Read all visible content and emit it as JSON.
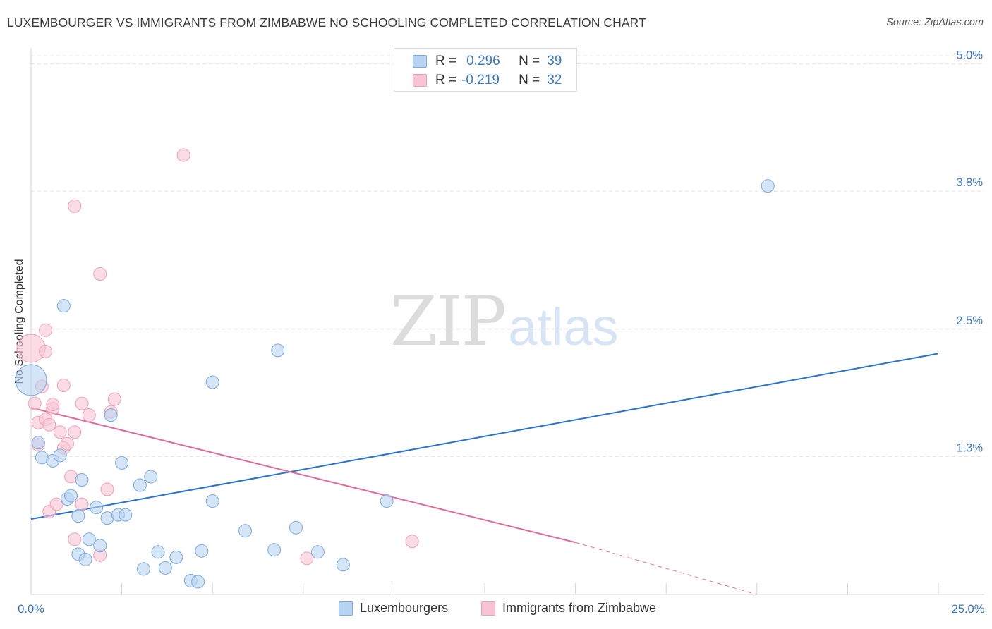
{
  "title": "LUXEMBOURGER VS IMMIGRANTS FROM ZIMBABWE NO SCHOOLING COMPLETED CORRELATION CHART",
  "source": "Source: ZipAtlas.com",
  "watermark": {
    "zip": "ZIP",
    "atlas": "atlas"
  },
  "legend_top": {
    "r_label": "R =",
    "n_label": "N =",
    "series": [
      {
        "r": "0.296",
        "n": "39"
      },
      {
        "r": "-0.219",
        "n": "32"
      }
    ]
  },
  "colors": {
    "blue_fill": "#b7d3f2",
    "blue_stroke": "#7aa9dc",
    "blue_line": "#2a72cf",
    "pink_fill": "#f8c4d3",
    "pink_stroke": "#ef9fb8",
    "pink_line": "#e06a98",
    "value_text": "#3b78c4",
    "grid": "#e3e3e3"
  },
  "chart_data": {
    "type": "scatter",
    "title": "LUXEMBOURGER VS IMMIGRANTS FROM ZIMBABWE NO SCHOOLING COMPLETED CORRELATION CHART",
    "xlabel": "",
    "ylabel": "No Schooling Completed",
    "xlim": [
      0,
      25
    ],
    "ylim": [
      0,
      5.15
    ],
    "x_tick_labels": [
      "0.0%",
      "25.0%"
    ],
    "y_ticks": [
      1.3,
      2.5,
      3.8,
      5.0
    ],
    "y_tick_labels": [
      "1.3%",
      "2.5%",
      "3.8%",
      "5.0%"
    ],
    "series": [
      {
        "name": "Luxembourgers",
        "color": "#b7d3f2",
        "trend": {
          "x": [
            0,
            25
          ],
          "y": [
            0.71,
            2.27
          ]
        },
        "points": [
          [
            0.0,
            2.02,
            22
          ],
          [
            0.2,
            1.43,
            9
          ],
          [
            0.3,
            1.29,
            9
          ],
          [
            0.6,
            1.26,
            9
          ],
          [
            0.8,
            1.31,
            9
          ],
          [
            0.9,
            2.72,
            9
          ],
          [
            1.0,
            0.9,
            9
          ],
          [
            1.1,
            0.93,
            9
          ],
          [
            1.3,
            0.38,
            9
          ],
          [
            1.3,
            0.74,
            9
          ],
          [
            1.4,
            1.08,
            9
          ],
          [
            1.5,
            0.33,
            9
          ],
          [
            1.6,
            0.52,
            9
          ],
          [
            1.8,
            0.82,
            9
          ],
          [
            1.9,
            0.46,
            9
          ],
          [
            2.1,
            0.72,
            9
          ],
          [
            2.2,
            1.69,
            9
          ],
          [
            2.4,
            0.75,
            9
          ],
          [
            2.5,
            1.24,
            9
          ],
          [
            2.6,
            0.75,
            9
          ],
          [
            3.0,
            1.03,
            9
          ],
          [
            3.1,
            0.24,
            9
          ],
          [
            3.3,
            1.11,
            9
          ],
          [
            3.5,
            0.4,
            9
          ],
          [
            3.7,
            0.25,
            9
          ],
          [
            4.0,
            0.35,
            9
          ],
          [
            4.4,
            0.13,
            9
          ],
          [
            4.6,
            0.12,
            9
          ],
          [
            4.7,
            0.41,
            9
          ],
          [
            5.0,
            2.0,
            9
          ],
          [
            5.0,
            0.88,
            9
          ],
          [
            5.9,
            0.6,
            9
          ],
          [
            6.7,
            0.42,
            9
          ],
          [
            6.8,
            2.3,
            9
          ],
          [
            7.3,
            0.63,
            9
          ],
          [
            7.9,
            0.4,
            9
          ],
          [
            8.6,
            0.28,
            9
          ],
          [
            9.8,
            0.88,
            9
          ],
          [
            20.3,
            3.85,
            9
          ]
        ]
      },
      {
        "name": "Immigrants from Zimbabwe",
        "color": "#f8c4d3",
        "trend": {
          "x": [
            0,
            15
          ],
          "y": [
            1.76,
            0.49
          ]
        },
        "trend_dashed": {
          "x": [
            15,
            20
          ],
          "y": [
            0.49,
            0.0
          ]
        },
        "points": [
          [
            0.0,
            2.32,
            20
          ],
          [
            0.1,
            1.8,
            9
          ],
          [
            0.2,
            1.62,
            9
          ],
          [
            0.2,
            1.41,
            9
          ],
          [
            0.3,
            1.96,
            9
          ],
          [
            0.4,
            1.65,
            9
          ],
          [
            0.4,
            2.29,
            9
          ],
          [
            0.4,
            2.49,
            9
          ],
          [
            0.5,
            1.6,
            9
          ],
          [
            0.5,
            0.78,
            9
          ],
          [
            0.6,
            1.75,
            9
          ],
          [
            0.6,
            1.79,
            9
          ],
          [
            0.7,
            0.85,
            9
          ],
          [
            0.8,
            1.53,
            9
          ],
          [
            0.9,
            1.97,
            9
          ],
          [
            0.9,
            1.38,
            9
          ],
          [
            1.0,
            1.42,
            9
          ],
          [
            1.1,
            1.11,
            9
          ],
          [
            1.2,
            0.52,
            9
          ],
          [
            1.2,
            1.53,
            9
          ],
          [
            1.2,
            3.66,
            9
          ],
          [
            1.4,
            0.85,
            9
          ],
          [
            1.4,
            1.8,
            9
          ],
          [
            1.6,
            1.69,
            9
          ],
          [
            1.9,
            0.37,
            9
          ],
          [
            1.9,
            3.02,
            9
          ],
          [
            2.1,
            0.99,
            9
          ],
          [
            2.2,
            1.72,
            9
          ],
          [
            2.3,
            1.84,
            9
          ],
          [
            4.2,
            4.14,
            9
          ],
          [
            7.6,
            0.34,
            9
          ],
          [
            10.5,
            0.5,
            9
          ]
        ]
      }
    ]
  },
  "legend_bottom": [
    {
      "label": "Luxembourgers"
    },
    {
      "label": "Immigrants from Zimbabwe"
    }
  ]
}
